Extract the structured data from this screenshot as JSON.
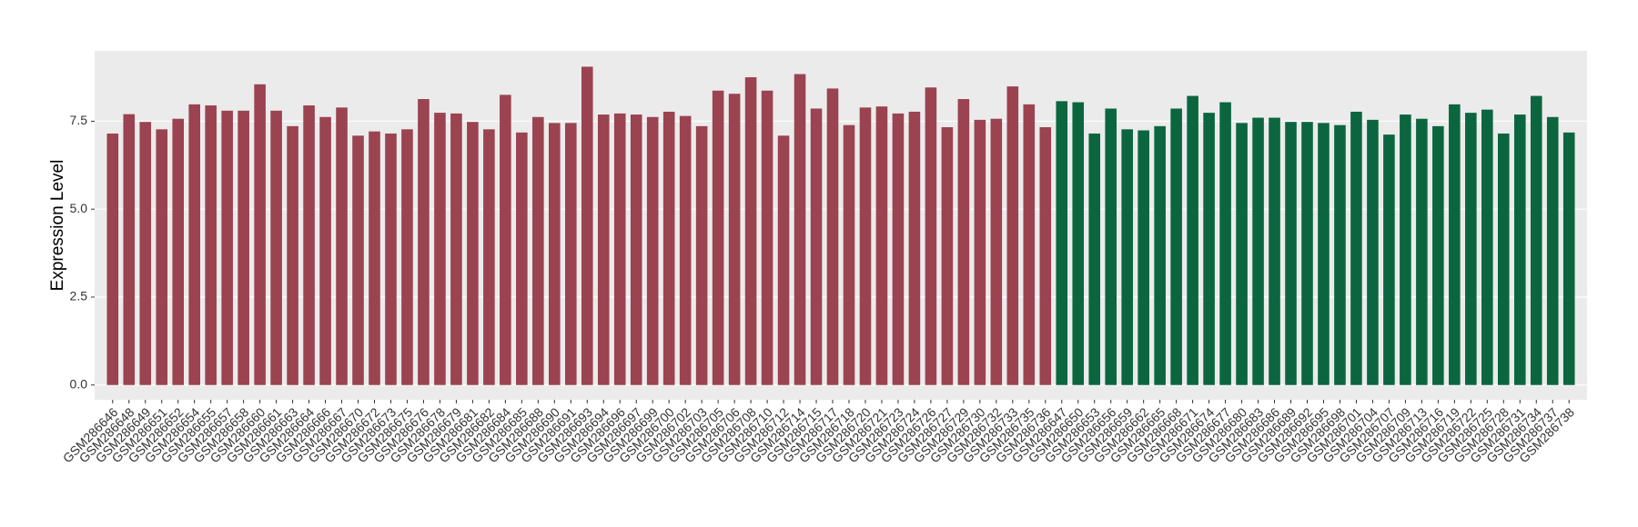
{
  "chart_data": {
    "type": "bar",
    "y_label": "Expression Level",
    "categories": [
      "GSM286646",
      "GSM286648",
      "GSM286649",
      "GSM286651",
      "GSM286652",
      "GSM286654",
      "GSM286655",
      "GSM286657",
      "GSM286658",
      "GSM286660",
      "GSM286661",
      "GSM286663",
      "GSM286664",
      "GSM286666",
      "GSM286667",
      "GSM286670",
      "GSM286672",
      "GSM286673",
      "GSM286675",
      "GSM286676",
      "GSM286678",
      "GSM286679",
      "GSM286681",
      "GSM286682",
      "GSM286684",
      "GSM286685",
      "GSM286688",
      "GSM286690",
      "GSM286691",
      "GSM286693",
      "GSM286694",
      "GSM286696",
      "GSM286697",
      "GSM286699",
      "GSM286700",
      "GSM286702",
      "GSM286703",
      "GSM286705",
      "GSM286706",
      "GSM286708",
      "GSM286710",
      "GSM286712",
      "GSM286714",
      "GSM286715",
      "GSM286717",
      "GSM286718",
      "GSM286720",
      "GSM286721",
      "GSM286723",
      "GSM286724",
      "GSM286726",
      "GSM286727",
      "GSM286729",
      "GSM286730",
      "GSM286732",
      "GSM286733",
      "GSM286735",
      "GSM286736",
      "GSM286647",
      "GSM286650",
      "GSM286653",
      "GSM286656",
      "GSM286659",
      "GSM286662",
      "GSM286665",
      "GSM286668",
      "GSM286671",
      "GSM286674",
      "GSM286677",
      "GSM286680",
      "GSM286683",
      "GSM286686",
      "GSM286689",
      "GSM286692",
      "GSM286695",
      "GSM286698",
      "GSM286701",
      "GSM286704",
      "GSM286707",
      "GSM286709",
      "GSM286713",
      "GSM286716",
      "GSM286719",
      "GSM286722",
      "GSM286725",
      "GSM286728",
      "GSM286731",
      "GSM286734",
      "GSM286737",
      "GSM286738"
    ],
    "series": [
      {
        "color": "#9b4350",
        "values": [
          7.15,
          7.7,
          7.48,
          7.27,
          7.57,
          7.98,
          7.95,
          7.8,
          7.8,
          8.55,
          7.8,
          7.36,
          7.95,
          7.62,
          7.89,
          7.09,
          7.21,
          7.15,
          7.27,
          8.13,
          7.74,
          7.72,
          7.48,
          7.27,
          8.25,
          7.18,
          7.62,
          7.45,
          7.45,
          9.05,
          7.69,
          7.72,
          7.69,
          7.62,
          7.77,
          7.65,
          7.36,
          8.37,
          8.28,
          8.75,
          8.37,
          7.09,
          8.84,
          7.86,
          8.43,
          7.39,
          7.89,
          7.92,
          7.72,
          7.77,
          8.46,
          7.33,
          8.13,
          7.54,
          7.57,
          8.49,
          7.98,
          7.33,
          null,
          null,
          null,
          null,
          null,
          null,
          null,
          null,
          null,
          null,
          null,
          null,
          null,
          null,
          null,
          null,
          null,
          null,
          null,
          null,
          null,
          null,
          null,
          null,
          null,
          null,
          null,
          null,
          null,
          null,
          null,
          null
        ]
      },
      {
        "color": "#0b6640",
        "values": [
          null,
          null,
          null,
          null,
          null,
          null,
          null,
          null,
          null,
          null,
          null,
          null,
          null,
          null,
          null,
          null,
          null,
          null,
          null,
          null,
          null,
          null,
          null,
          null,
          null,
          null,
          null,
          null,
          null,
          null,
          null,
          null,
          null,
          null,
          null,
          null,
          null,
          null,
          null,
          null,
          null,
          null,
          null,
          null,
          null,
          null,
          null,
          null,
          null,
          null,
          null,
          null,
          null,
          null,
          null,
          null,
          null,
          null,
          8.07,
          8.04,
          7.15,
          7.86,
          7.27,
          7.24,
          7.36,
          7.86,
          8.22,
          7.74,
          8.04,
          7.45,
          7.6,
          7.6,
          7.48,
          7.48,
          7.45,
          7.39,
          7.77,
          7.54,
          7.12,
          7.69,
          7.57,
          7.36,
          7.98,
          7.74,
          7.83,
          7.15,
          7.69,
          8.22,
          7.62,
          7.18
        ]
      }
    ],
    "ylim": [
      -0.42,
      9.5
    ],
    "yticks": [
      {
        "value": 0,
        "label": "0.0"
      },
      {
        "value": 2.5,
        "label": "2.5"
      },
      {
        "value": 5,
        "label": "5.0"
      },
      {
        "value": 7.5,
        "label": "7.5"
      }
    ],
    "grid": true
  }
}
